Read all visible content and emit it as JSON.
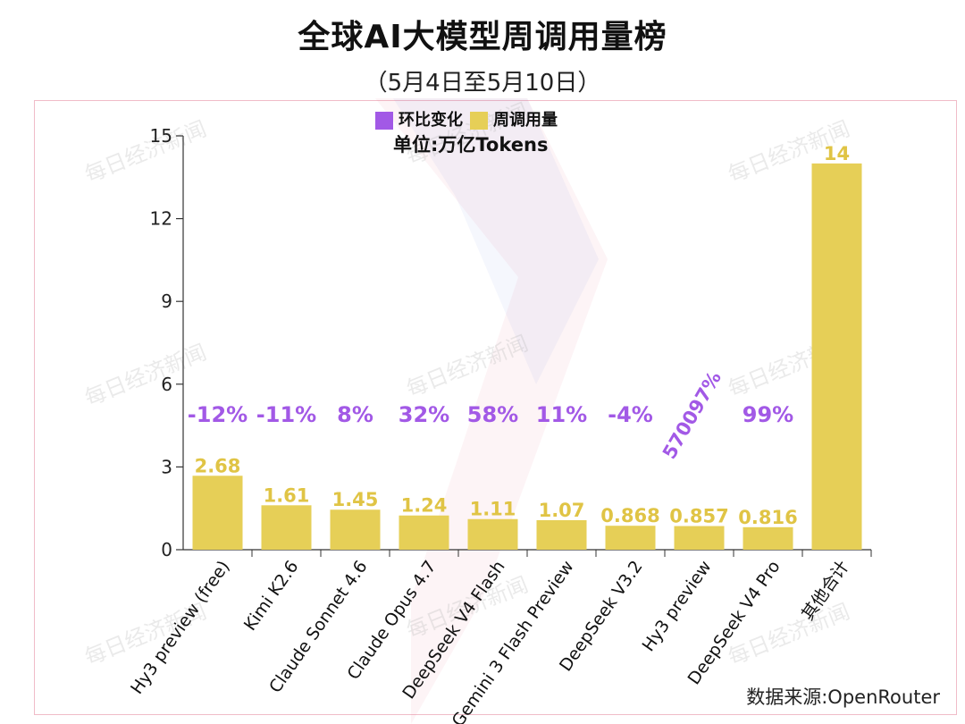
{
  "title": "全球AI大模型周调用量榜",
  "subtitle": "（5月4日至5月10日）",
  "unit_label": "单位:万亿Tokens",
  "source": "数据来源:OpenRouter",
  "watermark": "每日经济新闻",
  "legend": [
    {
      "label": "环比变化",
      "color": "#a259e6"
    },
    {
      "label": "周调用量",
      "color": "#e6cf57"
    }
  ],
  "colors": {
    "bar": "#e6cf57",
    "bar_label": "#e0c445",
    "change_label": "#a259e6",
    "axis": "#333333"
  },
  "chart_data": {
    "type": "bar",
    "title": "全球AI大模型周调用量榜",
    "categories": [
      "Hy3 preview (free)",
      "Kimi K2.6",
      "Claude Sonnet 4.6",
      "Claude Opus 4.7",
      "DeepSeek V4 Flash",
      "Gemini 3 Flash Preview",
      "DeepSeek V3.2",
      "Hy3 preview",
      "DeepSeek V4 Pro",
      "其他合计"
    ],
    "series": [
      {
        "name": "周调用量",
        "values": [
          2.68,
          1.61,
          1.45,
          1.24,
          1.11,
          1.07,
          0.868,
          0.857,
          0.816,
          14
        ],
        "labels": [
          "2.68",
          "1.61",
          "1.45",
          "1.24",
          "1.11",
          "1.07",
          "0.868",
          "0.857",
          "0.816",
          "14"
        ]
      },
      {
        "name": "环比变化",
        "labels": [
          "-12%",
          "-11%",
          "8%",
          "32%",
          "58%",
          "11%",
          "-4%",
          "570097%",
          "99%",
          ""
        ]
      }
    ],
    "ylim": [
      0,
      15
    ],
    "yticks": [
      0,
      3,
      6,
      9,
      12,
      15
    ],
    "ylabel": "",
    "xlabel": "",
    "grid": false,
    "legend_position": "top-center"
  }
}
